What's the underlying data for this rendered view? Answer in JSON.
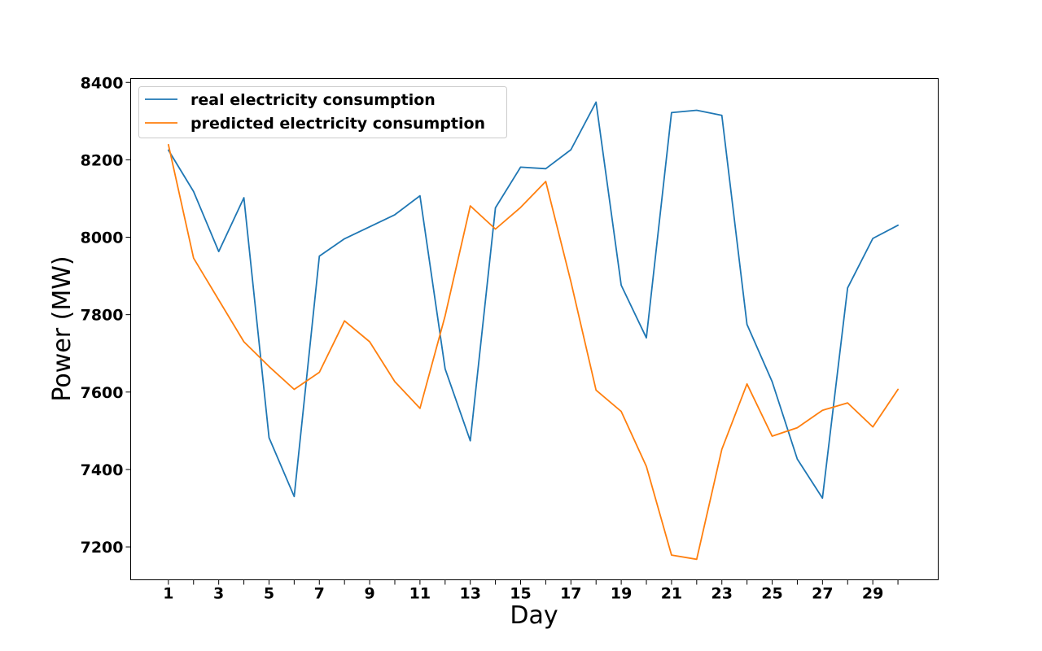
{
  "chart_data": {
    "type": "line",
    "xlabel": "Day",
    "ylabel": "Power (MW)",
    "xlim": [
      -0.5,
      31.6
    ],
    "ylim": [
      7115,
      8410
    ],
    "x": [
      1,
      2,
      3,
      4,
      5,
      6,
      7,
      8,
      9,
      10,
      11,
      12,
      13,
      14,
      15,
      16,
      17,
      18,
      19,
      20,
      21,
      22,
      23,
      24,
      25,
      26,
      27,
      28,
      29,
      30
    ],
    "x_tick_values": [
      1,
      2,
      3,
      4,
      5,
      6,
      7,
      8,
      9,
      10,
      11,
      12,
      13,
      14,
      15,
      16,
      17,
      18,
      19,
      20,
      21,
      22,
      23,
      24,
      25,
      26,
      27,
      28,
      29,
      30
    ],
    "x_tick_labels": [
      "1",
      "",
      "3",
      "",
      "5",
      "",
      "7",
      "",
      "9",
      "",
      "11",
      "",
      "13",
      "",
      "15",
      "",
      "17",
      "",
      "19",
      "",
      "21",
      "",
      "23",
      "",
      "25",
      "",
      "27",
      "",
      "29",
      ""
    ],
    "y_ticks": [
      7200,
      7400,
      7600,
      7800,
      8000,
      8200,
      8400
    ],
    "y_tick_labels": [
      "7200",
      "7400",
      "7600",
      "7800",
      "8000",
      "8200",
      "8400"
    ],
    "grid": false,
    "legend_position": "top-left",
    "series": [
      {
        "name": "real electricity consumption",
        "color": "#1f77b4",
        "values": [
          8225,
          8118,
          7963,
          8102,
          7482,
          7330,
          7951,
          7996,
          8027,
          8058,
          8107,
          7660,
          7474,
          8076,
          8181,
          8177,
          8226,
          8349,
          7876,
          7740,
          8322,
          8328,
          8315,
          7775,
          7627,
          7427,
          7326,
          7869,
          7997,
          8031
        ]
      },
      {
        "name": "predicted electricity consumption",
        "color": "#ff7f0e",
        "values": [
          8239,
          7946,
          7838,
          7730,
          7666,
          7607,
          7651,
          7784,
          7730,
          7627,
          7558,
          7797,
          8081,
          8021,
          8077,
          8144,
          7885,
          7605,
          7550,
          7408,
          7179,
          7168,
          7452,
          7621,
          7486,
          7508,
          7553,
          7572,
          7510,
          7607
        ]
      }
    ]
  }
}
